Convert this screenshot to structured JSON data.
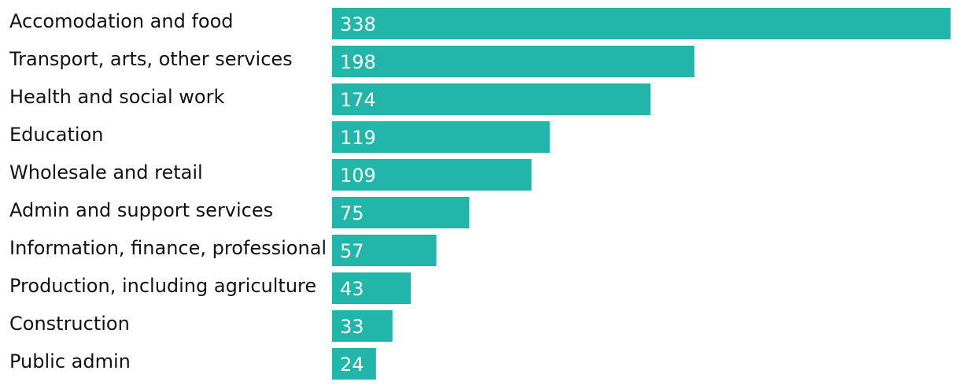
{
  "chart_data": {
    "type": "bar",
    "orientation": "horizontal",
    "color": "#22b5a9",
    "categories": [
      "Accomodation and food",
      "Transport, arts, other services",
      "Health and social work",
      "Education",
      "Wholesale and retail",
      "Admin and support services",
      "Information, finance, professional",
      "Production, including agriculture",
      "Construction",
      "Public admin"
    ],
    "values": [
      338,
      198,
      174,
      119,
      109,
      75,
      57,
      43,
      33,
      24
    ]
  }
}
